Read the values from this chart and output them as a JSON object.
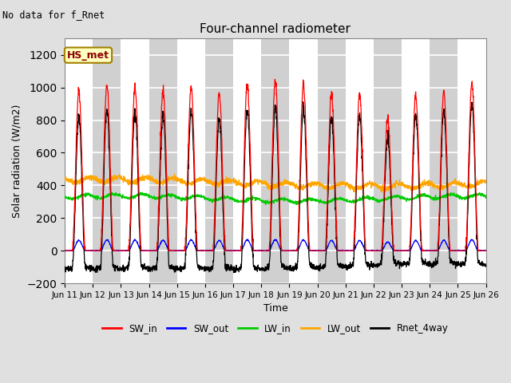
{
  "title": "Four-channel radiometer",
  "subtitle": "No data for f_Rnet",
  "xlabel": "Time",
  "ylabel": "Solar radiation (W/m2)",
  "ylim": [
    -200,
    1300
  ],
  "yticks": [
    -200,
    0,
    200,
    400,
    600,
    800,
    1000,
    1200
  ],
  "annotation": "HS_met",
  "annotation_box_color": "#ffffc0",
  "annotation_box_edge": "#a08000",
  "background_color": "#e0e0e0",
  "plot_bg_color": "#ffffff",
  "stripe_color": "#d0d0d0",
  "legend_entries": [
    "SW_in",
    "SW_out",
    "LW_in",
    "LW_out",
    "Rnet_4way"
  ],
  "legend_colors": [
    "#ff0000",
    "#0000ff",
    "#00cc00",
    "#ffa500",
    "#000000"
  ],
  "line_colors": {
    "SW_in": "#ff0000",
    "SW_out": "#0000ff",
    "LW_in": "#00cc00",
    "LW_out": "#ffa500",
    "Rnet_4way": "#000000"
  },
  "n_days": 15,
  "x_tick_labels": [
    "Jun 11",
    "Jun 12",
    "Jun 13",
    "Jun 14",
    "Jun 15",
    "Jun 16",
    "Jun 17",
    "Jun 18",
    "Jun 19",
    "Jun 20",
    "Jun 21",
    "Jun 22",
    "Jun 23",
    "Jun 24",
    "Jun 25",
    "Jun 26"
  ],
  "sw_in_peaks": [
    980,
    1020,
    1000,
    985,
    1000,
    960,
    1020,
    1040,
    1020,
    960,
    960,
    800,
    950,
    965,
    1020
  ],
  "lw_in_base": 320,
  "lw_out_base": 415,
  "sw_out_ratio": 0.065,
  "night_rnet": -90
}
